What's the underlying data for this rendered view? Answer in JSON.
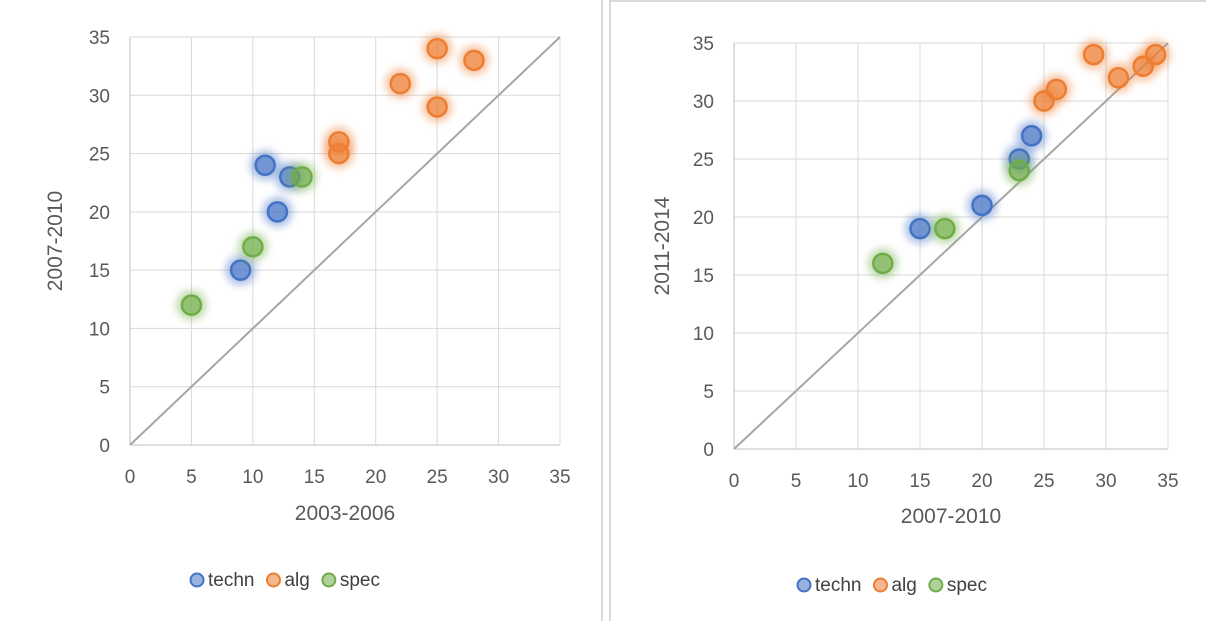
{
  "chart_data": [
    {
      "type": "scatter",
      "title": "",
      "xlabel": "2003-2006",
      "ylabel": "2007-2010",
      "xlim": [
        0,
        35
      ],
      "ylim": [
        0,
        35
      ],
      "xticks": [
        0,
        5,
        10,
        15,
        20,
        25,
        30,
        35
      ],
      "yticks": [
        0,
        5,
        10,
        15,
        20,
        25,
        30,
        35
      ],
      "grid": true,
      "reference_line": {
        "from": [
          0,
          0
        ],
        "to": [
          35,
          35
        ],
        "color": "#a6a6a6"
      },
      "legend_position": "bottom",
      "series": [
        {
          "name": "techn",
          "color": "#4472c4",
          "points": [
            [
              9,
              15
            ],
            [
              11,
              24
            ],
            [
              12,
              20
            ],
            [
              13,
              23
            ]
          ]
        },
        {
          "name": "alg",
          "color": "#ed7d31",
          "points": [
            [
              17,
              26
            ],
            [
              17,
              25
            ],
            [
              22,
              31
            ],
            [
              25,
              34
            ],
            [
              25,
              29
            ],
            [
              28,
              33
            ]
          ]
        },
        {
          "name": "spec",
          "color": "#70ad47",
          "points": [
            [
              5,
              12
            ],
            [
              10,
              17
            ],
            [
              14,
              23
            ]
          ]
        }
      ]
    },
    {
      "type": "scatter",
      "title": "",
      "xlabel": "2007-2010",
      "ylabel": "2011-2014",
      "xlim": [
        0,
        35
      ],
      "ylim": [
        0,
        35
      ],
      "xticks": [
        0,
        5,
        10,
        15,
        20,
        25,
        30,
        35
      ],
      "yticks": [
        0,
        5,
        10,
        15,
        20,
        25,
        30,
        35
      ],
      "grid": true,
      "reference_line": {
        "from": [
          0,
          0
        ],
        "to": [
          35,
          35
        ],
        "color": "#a6a6a6"
      },
      "legend_position": "bottom",
      "series": [
        {
          "name": "techn",
          "color": "#4472c4",
          "points": [
            [
              15,
              19
            ],
            [
              20,
              21
            ],
            [
              23,
              25
            ],
            [
              24,
              27
            ]
          ]
        },
        {
          "name": "alg",
          "color": "#ed7d31",
          "points": [
            [
              25,
              30
            ],
            [
              26,
              31
            ],
            [
              29,
              34
            ],
            [
              31,
              32
            ],
            [
              33,
              33
            ],
            [
              34,
              34
            ]
          ]
        },
        {
          "name": "spec",
          "color": "#70ad47",
          "points": [
            [
              12,
              16
            ],
            [
              17,
              19
            ],
            [
              23,
              24
            ]
          ]
        }
      ]
    }
  ]
}
